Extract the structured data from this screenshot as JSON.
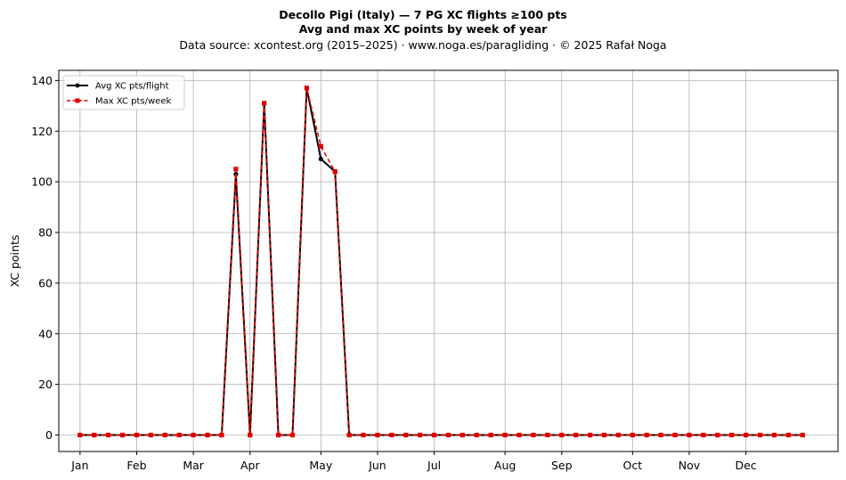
{
  "chart_data": {
    "type": "line",
    "title_line1": "Decollo Pigi (Italy)  —  7 PG XC flights ≥100 pts",
    "title_line2": "Avg and max XC points by week of year",
    "subtitle": "Data source: xcontest.org (2015–2025)  ·  www.noga.es/paragliding  ·  © 2025 Rafał Noga",
    "ylabel": "XC points",
    "xlabel": "",
    "ylim": [
      -6.5,
      144
    ],
    "xlim": [
      -1.5,
      53.5
    ],
    "yticks": [
      0,
      20,
      40,
      60,
      80,
      100,
      120,
      140
    ],
    "xticks": [
      {
        "week": 0,
        "label": "Jan"
      },
      {
        "week": 4,
        "label": "Feb"
      },
      {
        "week": 8,
        "label": "Mar"
      },
      {
        "week": 12,
        "label": "Apr"
      },
      {
        "week": 17,
        "label": "May"
      },
      {
        "week": 21,
        "label": "Jun"
      },
      {
        "week": 25,
        "label": "Jul"
      },
      {
        "week": 30,
        "label": "Aug"
      },
      {
        "week": 34,
        "label": "Sep"
      },
      {
        "week": 39,
        "label": "Oct"
      },
      {
        "week": 43,
        "label": "Nov"
      },
      {
        "week": 47,
        "label": "Dec"
      }
    ],
    "grid": true,
    "legend_position": "top-left",
    "x": [
      0,
      1,
      2,
      3,
      4,
      5,
      6,
      7,
      8,
      9,
      10,
      11,
      12,
      13,
      14,
      15,
      16,
      17,
      18,
      19,
      20,
      21,
      22,
      23,
      24,
      25,
      26,
      27,
      28,
      29,
      30,
      31,
      32,
      33,
      34,
      35,
      36,
      37,
      38,
      39,
      40,
      41,
      42,
      43,
      44,
      45,
      46,
      47,
      48,
      49,
      50,
      51
    ],
    "series": [
      {
        "name": "Avg XC pts/flight",
        "color": "#000000",
        "style": "solid",
        "marker": "circle",
        "values": [
          0,
          0,
          0,
          0,
          0,
          0,
          0,
          0,
          0,
          0,
          0,
          103,
          0,
          131,
          0,
          0,
          137,
          109,
          104,
          0,
          0,
          0,
          0,
          0,
          0,
          0,
          0,
          0,
          0,
          0,
          0,
          0,
          0,
          0,
          0,
          0,
          0,
          0,
          0,
          0,
          0,
          0,
          0,
          0,
          0,
          0,
          0,
          0,
          0,
          0,
          0,
          0
        ]
      },
      {
        "name": "Max XC pts/week",
        "color": "#e00000",
        "style": "dashed",
        "marker": "square",
        "values": [
          0,
          0,
          0,
          0,
          0,
          0,
          0,
          0,
          0,
          0,
          0,
          105,
          0,
          131,
          0,
          0,
          137,
          114,
          104,
          0,
          0,
          0,
          0,
          0,
          0,
          0,
          0,
          0,
          0,
          0,
          0,
          0,
          0,
          0,
          0,
          0,
          0,
          0,
          0,
          0,
          0,
          0,
          0,
          0,
          0,
          0,
          0,
          0,
          0,
          0,
          0,
          0
        ]
      }
    ]
  }
}
